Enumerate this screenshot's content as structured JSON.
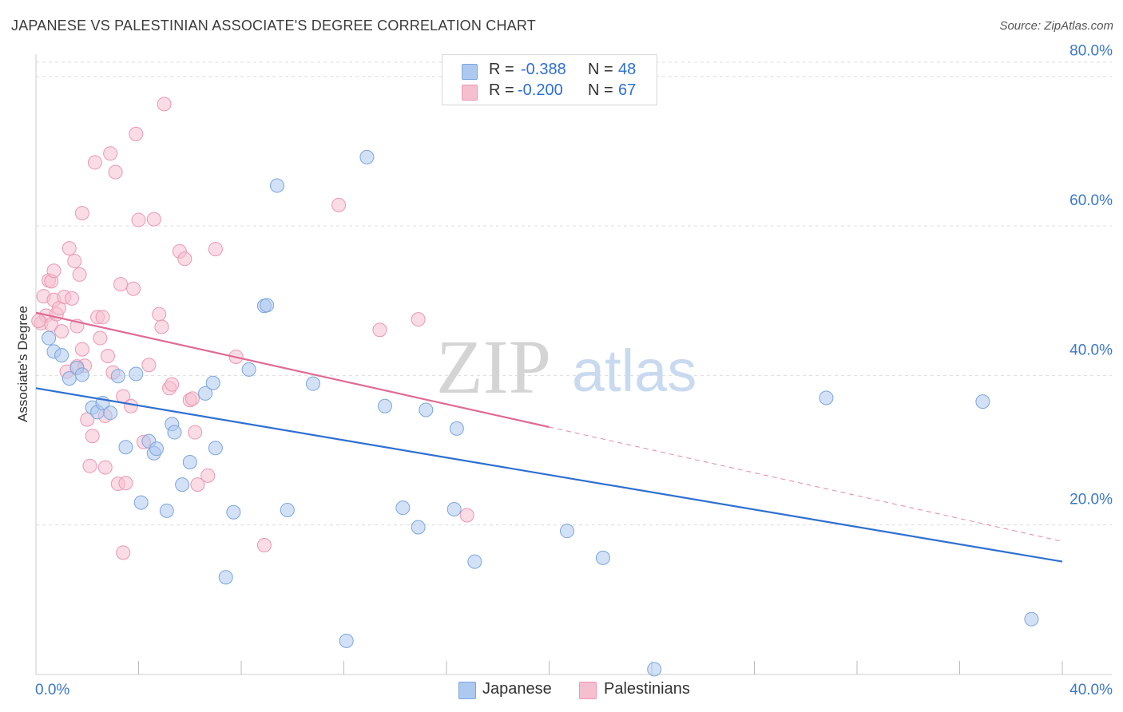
{
  "header": {
    "title": "JAPANESE VS PALESTINIAN ASSOCIATE'S DEGREE CORRELATION CHART",
    "source": "Source: ZipAtlas.com"
  },
  "watermark": {
    "part1": "ZIP",
    "part2": "atlas"
  },
  "stats_legend": {
    "rows": [
      {
        "r_label": "R =",
        "r_value": "-0.388",
        "n_label": "N =",
        "n_value": "48"
      },
      {
        "r_label": "R =",
        "r_value": "-0.200",
        "n_label": "N =",
        "n_value": "67"
      }
    ]
  },
  "series_legend": {
    "items": [
      {
        "name": "Japanese"
      },
      {
        "name": "Palestinians"
      }
    ]
  },
  "colors": {
    "japanese_fill": "#aec9ef",
    "japanese_stroke": "#7aa6df",
    "japanese_line": "#2e6fd1",
    "palestinian_fill": "#f6bfd0",
    "palestinian_stroke": "#ec97b2",
    "palestinian_line": "#e06a95",
    "axis_label": "#3c78c8",
    "grid": "#dddddd"
  },
  "chart_data": {
    "type": "scatter",
    "title": "JAPANESE VS PALESTINIAN ASSOCIATE'S DEGREE CORRELATION CHART",
    "xlabel": "",
    "ylabel": "Associate's Degree",
    "xlim": [
      0,
      40
    ],
    "ylim": [
      0,
      82
    ],
    "x_tick_labels": [
      "0.0%",
      "40.0%"
    ],
    "y_ticks": [
      20,
      40,
      60,
      80
    ],
    "y_tick_labels": [
      "20.0%",
      "40.0%",
      "60.0%",
      "80.0%"
    ],
    "grid": true,
    "legend_position": "top-center",
    "series": [
      {
        "name": "Japanese",
        "r": -0.388,
        "n": 48,
        "trend": {
          "x": [
            0,
            40
          ],
          "y": [
            38.3,
            15.1
          ],
          "dashed_x": null
        },
        "points": [
          [
            0.5,
            45.0
          ],
          [
            0.7,
            43.2
          ],
          [
            1.0,
            42.7
          ],
          [
            1.3,
            39.6
          ],
          [
            1.6,
            41.0
          ],
          [
            1.8,
            40.1
          ],
          [
            2.2,
            35.7
          ],
          [
            2.4,
            35.1
          ],
          [
            2.6,
            36.3
          ],
          [
            2.9,
            35.0
          ],
          [
            3.2,
            39.9
          ],
          [
            3.5,
            30.4
          ],
          [
            3.9,
            40.2
          ],
          [
            4.1,
            23.0
          ],
          [
            4.4,
            31.2
          ],
          [
            4.6,
            29.6
          ],
          [
            4.7,
            30.2
          ],
          [
            5.1,
            21.9
          ],
          [
            5.3,
            33.5
          ],
          [
            5.4,
            32.4
          ],
          [
            5.7,
            25.4
          ],
          [
            6.0,
            28.4
          ],
          [
            6.6,
            37.6
          ],
          [
            6.9,
            39.0
          ],
          [
            7.0,
            30.3
          ],
          [
            7.4,
            13.0
          ],
          [
            7.7,
            21.7
          ],
          [
            8.3,
            40.8
          ],
          [
            8.9,
            49.3
          ],
          [
            9.0,
            49.4
          ],
          [
            9.4,
            65.4
          ],
          [
            9.8,
            22.0
          ],
          [
            10.8,
            38.9
          ],
          [
            12.1,
            4.5
          ],
          [
            12.9,
            69.2
          ],
          [
            13.6,
            35.9
          ],
          [
            14.3,
            22.3
          ],
          [
            14.9,
            19.7
          ],
          [
            15.2,
            35.4
          ],
          [
            16.3,
            22.1
          ],
          [
            16.4,
            32.9
          ],
          [
            17.1,
            15.1
          ],
          [
            20.7,
            19.2
          ],
          [
            22.1,
            15.6
          ],
          [
            24.1,
            0.7
          ],
          [
            30.8,
            37.0
          ],
          [
            36.9,
            36.5
          ],
          [
            38.8,
            7.4
          ]
        ]
      },
      {
        "name": "Palestinians",
        "r": -0.2,
        "n": 67,
        "trend": {
          "x": [
            0,
            40
          ],
          "y": [
            48.4,
            17.8
          ],
          "dashed_x": 20
        },
        "points": [
          [
            0.2,
            47.0
          ],
          [
            0.3,
            50.6
          ],
          [
            0.4,
            48.0
          ],
          [
            0.5,
            52.7
          ],
          [
            0.6,
            46.8
          ],
          [
            0.6,
            52.6
          ],
          [
            0.7,
            50.1
          ],
          [
            0.7,
            54.0
          ],
          [
            0.8,
            48.2
          ],
          [
            0.9,
            49.0
          ],
          [
            1.0,
            45.9
          ],
          [
            1.1,
            50.5
          ],
          [
            1.2,
            40.5
          ],
          [
            1.3,
            57.0
          ],
          [
            1.4,
            50.3
          ],
          [
            1.5,
            55.3
          ],
          [
            1.6,
            41.2
          ],
          [
            1.6,
            46.6
          ],
          [
            1.7,
            53.5
          ],
          [
            1.8,
            43.5
          ],
          [
            1.8,
            61.7
          ],
          [
            1.9,
            41.3
          ],
          [
            2.0,
            34.1
          ],
          [
            2.1,
            27.9
          ],
          [
            2.2,
            31.9
          ],
          [
            2.3,
            68.5
          ],
          [
            2.4,
            47.8
          ],
          [
            2.5,
            45.0
          ],
          [
            2.6,
            47.8
          ],
          [
            2.7,
            27.7
          ],
          [
            2.7,
            34.6
          ],
          [
            2.8,
            42.6
          ],
          [
            2.9,
            69.7
          ],
          [
            3.0,
            40.4
          ],
          [
            3.1,
            67.2
          ],
          [
            3.2,
            25.5
          ],
          [
            3.3,
            52.2
          ],
          [
            3.4,
            16.3
          ],
          [
            3.4,
            37.2
          ],
          [
            3.5,
            25.6
          ],
          [
            3.7,
            35.9
          ],
          [
            3.8,
            51.6
          ],
          [
            3.9,
            72.3
          ],
          [
            4.0,
            60.8
          ],
          [
            4.2,
            31.1
          ],
          [
            4.4,
            41.4
          ],
          [
            4.6,
            60.9
          ],
          [
            4.8,
            48.2
          ],
          [
            4.9,
            46.5
          ],
          [
            5.0,
            76.3
          ],
          [
            5.2,
            38.3
          ],
          [
            5.3,
            38.8
          ],
          [
            5.6,
            56.6
          ],
          [
            5.8,
            55.6
          ],
          [
            6.0,
            36.7
          ],
          [
            6.1,
            36.9
          ],
          [
            6.2,
            32.4
          ],
          [
            6.3,
            25.4
          ],
          [
            6.7,
            26.6
          ],
          [
            7.0,
            56.9
          ],
          [
            7.8,
            42.5
          ],
          [
            8.9,
            17.3
          ],
          [
            11.8,
            62.8
          ],
          [
            13.4,
            46.1
          ],
          [
            14.9,
            47.5
          ],
          [
            16.8,
            21.3
          ],
          [
            0.1,
            47.3
          ]
        ]
      }
    ]
  }
}
